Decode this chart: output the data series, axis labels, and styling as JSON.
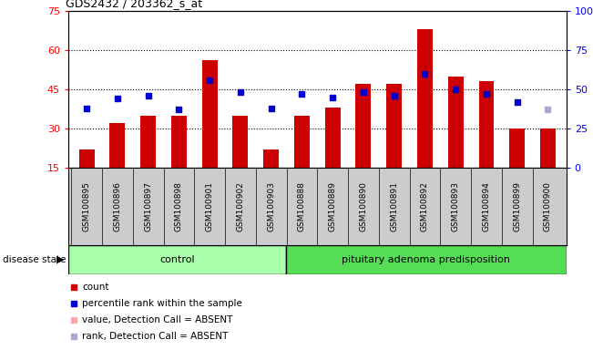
{
  "title": "GDS2432 / 203362_s_at",
  "samples": [
    "GSM100895",
    "GSM100896",
    "GSM100897",
    "GSM100898",
    "GSM100901",
    "GSM100902",
    "GSM100903",
    "GSM100888",
    "GSM100889",
    "GSM100890",
    "GSM100891",
    "GSM100892",
    "GSM100893",
    "GSM100894",
    "GSM100899",
    "GSM100900"
  ],
  "count_values": [
    22,
    32,
    35,
    35,
    56,
    35,
    22,
    35,
    38,
    47,
    47,
    68,
    50,
    48,
    30,
    30
  ],
  "rank_values": [
    38,
    44,
    46,
    37,
    56,
    48,
    38,
    47,
    45,
    48,
    46,
    60,
    50,
    47,
    42,
    null
  ],
  "absent_rank": [
    null,
    null,
    null,
    null,
    null,
    null,
    null,
    null,
    null,
    null,
    null,
    null,
    null,
    null,
    null,
    37
  ],
  "control_count": 7,
  "ylim_left": [
    15,
    75
  ],
  "ylim_right": [
    0,
    100
  ],
  "y_ticks_left": [
    15,
    30,
    45,
    60,
    75
  ],
  "y_ticks_right": [
    0,
    25,
    50,
    75,
    100
  ],
  "bar_color": "#cc0000",
  "rank_color": "#0000cc",
  "absent_rank_color": "#aaaacc",
  "absent_bar_color": "#ffaaaa",
  "control_label": "control",
  "disease_label": "pituitary adenoma predisposition",
  "control_bg": "#aaffaa",
  "disease_bg": "#55dd55",
  "group_label": "disease state",
  "legend_items": [
    {
      "label": "count",
      "color": "#cc0000"
    },
    {
      "label": "percentile rank within the sample",
      "color": "#0000cc"
    },
    {
      "label": "value, Detection Call = ABSENT",
      "color": "#ffaaaa"
    },
    {
      "label": "rank, Detection Call = ABSENT",
      "color": "#aaaacc"
    }
  ],
  "bar_width": 0.5,
  "rank_marker_size": 5,
  "dotted_grid_values": [
    30,
    45,
    60
  ],
  "tick_label_bg": "#cccccc",
  "plot_bg": "#ffffff"
}
